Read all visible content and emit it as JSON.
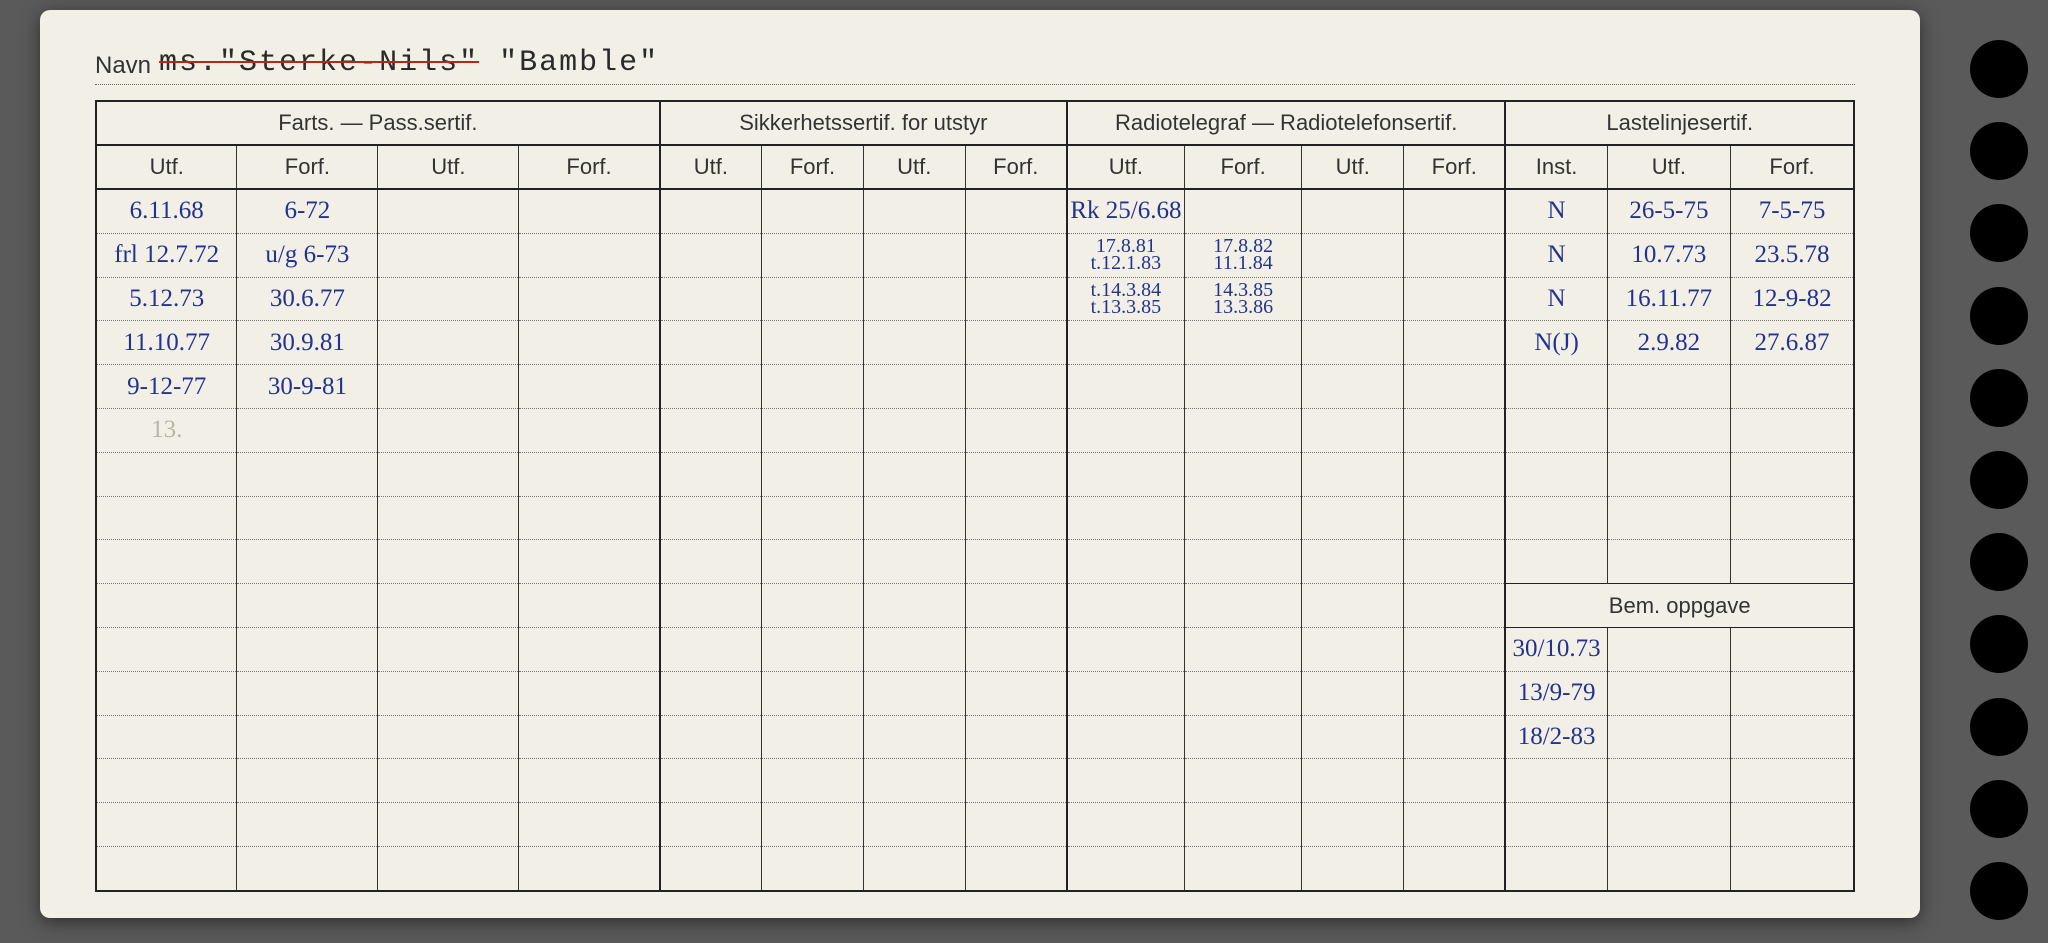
{
  "labels": {
    "navn": "Navn",
    "farts": "Farts. — Pass.sertif.",
    "sikkerhet": "Sikkerhetssertif. for utstyr",
    "radio": "Radiotelegraf — Radiotelefonsertif.",
    "laste": "Lastelinjesertif.",
    "utf": "Utf.",
    "forf": "Forf.",
    "inst": "Inst.",
    "bem": "Bem. oppgave"
  },
  "navn_value_struck": "ms.\"Sterke-Nils\"",
  "navn_value_new": " \"Bamble\"",
  "styling": {
    "card_bg": "#f2f0e6",
    "page_bg": "#5a5a5a",
    "ink_color": "#24328f",
    "print_color": "#333333",
    "dotted_color": "#777777",
    "solid_color": "#222222",
    "hand_font": "Comic Sans MS",
    "print_font": "Arial",
    "mono_font": "Courier New",
    "navn_fontsize": 30,
    "header_fontsize": 22,
    "hand_fontsize": 25
  },
  "columns": [
    {
      "group": "farts",
      "keys": [
        "utf",
        "forf",
        "utf",
        "forf"
      ],
      "widths": [
        110,
        110,
        110,
        110
      ]
    },
    {
      "group": "sikkerhet",
      "keys": [
        "utf",
        "forf",
        "utf",
        "forf"
      ],
      "widths": [
        82,
        82,
        82,
        82
      ]
    },
    {
      "group": "radio",
      "keys": [
        "utf",
        "forf",
        "utf",
        "forf"
      ],
      "widths": [
        90,
        90,
        82,
        82
      ]
    },
    {
      "group": "laste",
      "keys": [
        "inst",
        "utf",
        "forf"
      ],
      "widths": [
        82,
        95,
        95
      ]
    }
  ],
  "rows": [
    {
      "c0": "6.11.68",
      "c1": "6-72",
      "c2": "",
      "c3": "",
      "c4": "",
      "c5": "",
      "c6": "",
      "c7": "",
      "c8": "Rk 25/6.68",
      "c9": "",
      "c10": "",
      "c11": "",
      "c12": "N",
      "c13": "26-5-75",
      "c14": "7-5-75"
    },
    {
      "c0": "frl 12.7.72",
      "c1": "u/g 6-73",
      "c2": "",
      "c3": "",
      "c4": "",
      "c5": "",
      "c6": "",
      "c7": "",
      "c8": "17.8.81",
      "c8b": "t.12.1.83",
      "c9": "17.8.82",
      "c9b": "11.1.84",
      "c10": "",
      "c11": "",
      "c12": "N",
      "c13": "10.7.73",
      "c14": "23.5.78"
    },
    {
      "c0": "5.12.73",
      "c1": "30.6.77",
      "c2": "",
      "c3": "",
      "c4": "",
      "c5": "",
      "c6": "",
      "c7": "",
      "c8": "t.14.3.84",
      "c8b": "t.13.3.85",
      "c9": "14.3.85",
      "c9b": "13.3.86",
      "c10": "",
      "c11": "",
      "c12": "N",
      "c13": "16.11.77",
      "c14": "12-9-82"
    },
    {
      "c0": "11.10.77",
      "c1": "30.9.81",
      "c2": "",
      "c3": "",
      "c4": "",
      "c5": "",
      "c6": "",
      "c7": "",
      "c8": "",
      "c9": "",
      "c10": "",
      "c11": "",
      "c12": "N(J)",
      "c13": "2.9.82",
      "c14": "27.6.87"
    },
    {
      "c0": "9-12-77",
      "c1": "30-9-81",
      "c2": "",
      "c3": "",
      "c4": "",
      "c5": "",
      "c6": "",
      "c7": "",
      "c8": "",
      "c9": "",
      "c10": "",
      "c11": "",
      "c12": "",
      "c13": "",
      "c14": ""
    },
    {
      "c0": "13.",
      "c0_faded": true,
      "c1": "",
      "c2": "",
      "c3": "",
      "c4": "",
      "c5": "",
      "c6": "",
      "c7": "",
      "c8": "",
      "c9": "",
      "c10": "",
      "c11": "",
      "c12": "",
      "c13": "",
      "c14": ""
    },
    {
      "c0": "",
      "c1": "",
      "c2": "",
      "c3": "",
      "c4": "",
      "c5": "",
      "c6": "",
      "c7": "",
      "c8": "",
      "c9": "",
      "c10": "",
      "c11": "",
      "c12": "",
      "c13": "",
      "c14": ""
    },
    {
      "c0": "",
      "c1": "",
      "c2": "",
      "c3": "",
      "c4": "",
      "c5": "",
      "c6": "",
      "c7": "",
      "c8": "",
      "c9": "",
      "c10": "",
      "c11": "",
      "c12": "",
      "c13": "",
      "c14": ""
    },
    {
      "c0": "",
      "c1": "",
      "c2": "",
      "c3": "",
      "c4": "",
      "c5": "",
      "c6": "",
      "c7": "",
      "c8": "",
      "c9": "",
      "c10": "",
      "c11": "",
      "c12": "",
      "c13": "",
      "c14": ""
    }
  ],
  "bem_rows": [
    "30/10.73",
    "13/9-79",
    "18/2-83",
    "",
    "",
    ""
  ],
  "extra_left_rows": 6
}
